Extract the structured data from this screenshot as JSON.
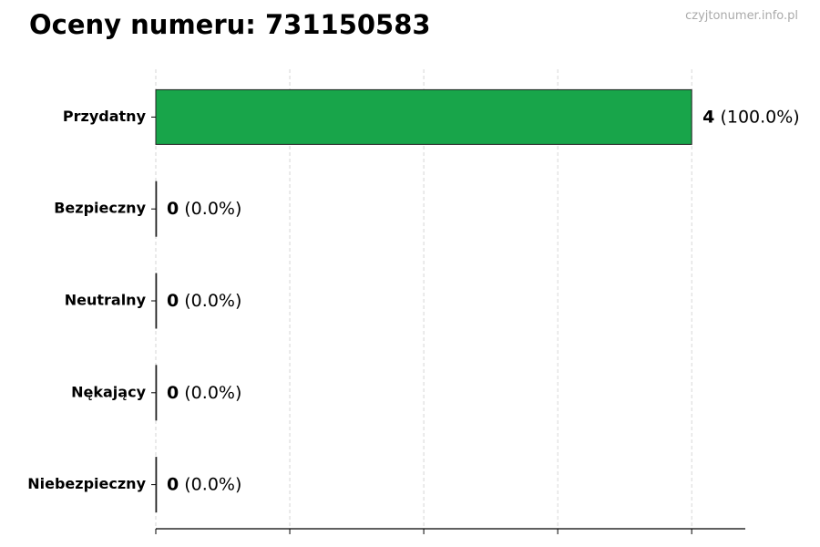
{
  "title": "Oceny numeru: 731150583",
  "watermark": "czyjtonumer.info.pl",
  "chart_data": {
    "type": "bar",
    "orientation": "horizontal",
    "title": "Oceny numeru: 731150583",
    "categories": [
      "Przydatny",
      "Bezpieczny",
      "Neutralny",
      "Nękający",
      "Niebezpieczny"
    ],
    "values": [
      4,
      0,
      0,
      0,
      0
    ],
    "percent_labels": [
      "(100.0%)",
      "(0.0%)",
      "(0.0%)",
      "(0.0%)",
      "(0.0%)"
    ],
    "xlim": [
      0,
      4.4
    ],
    "xticks": [
      0,
      1,
      2,
      3,
      4
    ],
    "xtick_labels_shown": false,
    "grid": "vertical dashed",
    "bar_color": "#18a54a",
    "xlabel": "",
    "ylabel": ""
  }
}
